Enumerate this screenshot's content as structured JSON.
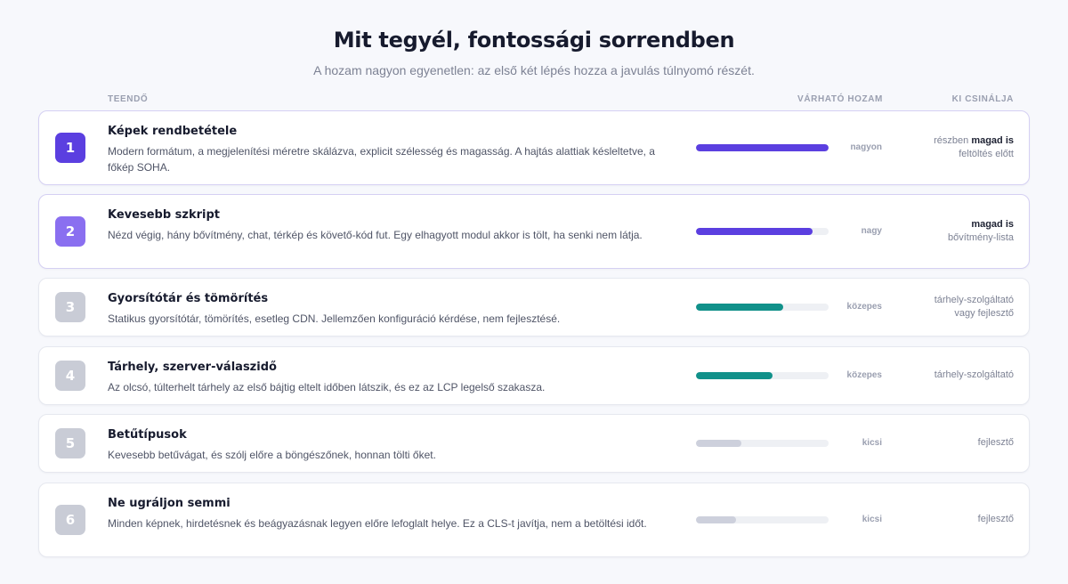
{
  "header": {
    "title": "Mit tegyél, fontossági sorrendben",
    "subtitle": "A hozam nagyon egyenetlen: az első két lépés hozza a javulás túlnyomó részét."
  },
  "columns": {
    "task": "TEENDŐ",
    "yield": "VÁRHATÓ HOZAM",
    "who": "KI CSINÁLJA"
  },
  "colors": {
    "primary": "#5b3fe0",
    "secondary": "#8a6ff0",
    "teal": "#11918a",
    "muted": "#c9ccd6"
  },
  "items": [
    {
      "num": "1",
      "title": "Képek rendbetétele",
      "desc": "Modern formátum, a megjelenítési méretre skálázva, explicit szélesség és magasság. A hajtás alattiak késleltetve, a főkép SOHA.",
      "yield_label": "nagyon",
      "yield_level": 1.0,
      "who_pre": "részben ",
      "who_bold": "magad is",
      "who_line2": "feltöltés előtt"
    },
    {
      "num": "2",
      "title": "Kevesebb szkript",
      "desc": "Nézd végig, hány bővítmény, chat, térkép és követő-kód fut. Egy elhagyott modul akkor is tölt, ha senki nem látja.",
      "yield_label": "nagy",
      "yield_level": 0.88,
      "who_pre": "",
      "who_bold": "magad is",
      "who_line2": "bővítmény-lista"
    },
    {
      "num": "3",
      "title": "Gyorsítótár és tömörítés",
      "desc": "Statikus gyorsítótár, tömörítés, esetleg CDN. Jellemzően konfiguráció kérdése, nem fejlesztésé.",
      "yield_label": "közepes",
      "yield_level": 0.66,
      "who_pre": "tárhely-szolgáltató",
      "who_bold": "",
      "who_line2": "vagy fejlesztő"
    },
    {
      "num": "4",
      "title": "Tárhely, szerver-válaszidő",
      "desc": "Az olcsó, túlterhelt tárhely az első bájtig eltelt időben látszik, és ez az LCP legelső szakasza.",
      "yield_label": "közepes",
      "yield_level": 0.58,
      "who_pre": "tárhely-szolgáltató",
      "who_bold": "",
      "who_line2": ""
    },
    {
      "num": "5",
      "title": "Betűtípusok",
      "desc": "Kevesebb betűvágat, és szólj előre a böngészőnek, honnan tölti őket.",
      "yield_label": "kicsi",
      "yield_level": 0.34,
      "who_pre": "fejlesztő",
      "who_bold": "",
      "who_line2": ""
    },
    {
      "num": "6",
      "title": "Ne ugráljon semmi",
      "desc": "Minden képnek, hirdetésnek és beágyazásnak legyen előre lefoglalt helye. Ez a CLS-t javítja, nem a betöltési időt.",
      "yield_label": "kicsi",
      "yield_level": 0.3,
      "who_pre": "fejlesztő",
      "who_bold": "",
      "who_line2": ""
    }
  ]
}
